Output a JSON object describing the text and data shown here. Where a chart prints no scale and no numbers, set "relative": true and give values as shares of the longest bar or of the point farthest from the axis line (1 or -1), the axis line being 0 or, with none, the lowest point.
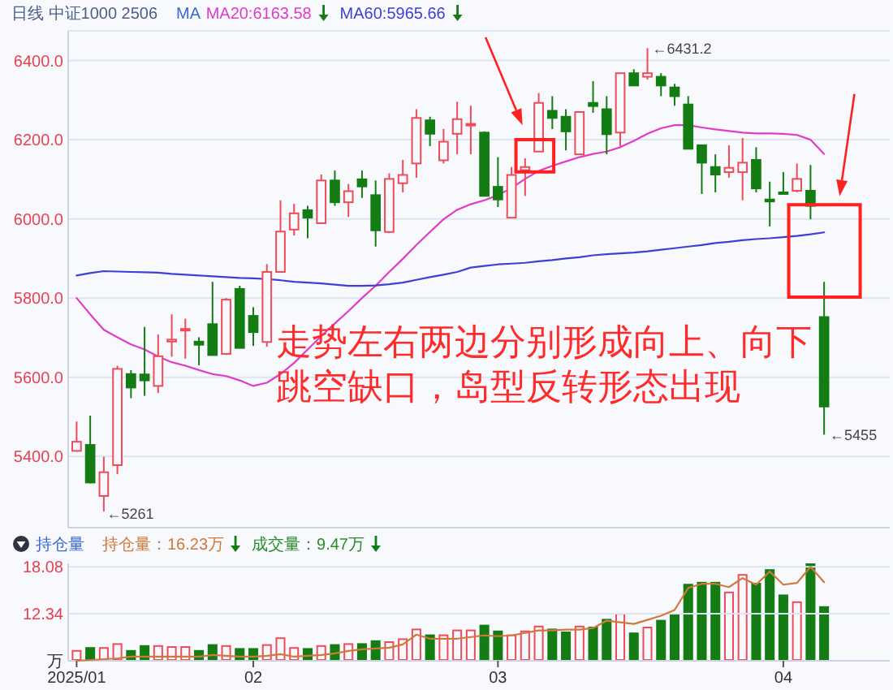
{
  "chart_data": [
    {
      "type": "candlestick",
      "title": "日线 中证1000 2506",
      "legend_title": "MA",
      "legend": "top",
      "grid": "y",
      "tick_labels": "y",
      "categories": [
        "2025/01",
        null,
        null,
        null,
        null,
        null,
        null,
        null,
        null,
        null,
        null,
        null,
        null,
        "02",
        null,
        null,
        null,
        null,
        null,
        null,
        null,
        null,
        null,
        null,
        null,
        null,
        null,
        null,
        null,
        null,
        null,
        "03",
        null,
        null,
        null,
        null,
        null,
        null,
        null,
        null,
        null,
        null,
        null,
        null,
        null,
        null,
        null,
        null,
        null,
        null,
        null,
        null,
        "04",
        null,
        null,
        null
      ],
      "ohlc": [
        [
          5414,
          5488,
          5412,
          5437
        ],
        [
          5429,
          5503,
          5332,
          5334
        ],
        [
          5300,
          5399,
          5261,
          5360
        ],
        [
          5378,
          5629,
          5355,
          5621
        ],
        [
          5608,
          5618,
          5547,
          5574
        ],
        [
          5607,
          5727,
          5553,
          5592
        ],
        [
          5578,
          5708,
          5560,
          5653
        ],
        [
          5690,
          5759,
          5652,
          5695
        ],
        [
          5718,
          5748,
          5647,
          5722
        ],
        [
          5690,
          5701,
          5630,
          5682
        ],
        [
          5734,
          5841,
          5656,
          5656
        ],
        [
          5659,
          5800,
          5656,
          5796
        ],
        [
          5823,
          5831,
          5674,
          5674
        ],
        [
          5755,
          5777,
          5679,
          5714
        ],
        [
          5689,
          5886,
          5677,
          5866
        ],
        [
          5866,
          6047,
          5866,
          5968
        ],
        [
          5973,
          6038,
          5958,
          6014
        ],
        [
          6022,
          6033,
          5951,
          6003
        ],
        [
          5989,
          6112,
          5989,
          6097
        ],
        [
          6097,
          6122,
          6033,
          6042
        ],
        [
          6042,
          6088,
          6005,
          6070
        ],
        [
          6100,
          6122,
          6053,
          6082
        ],
        [
          6060,
          6097,
          5930,
          5971
        ],
        [
          5967,
          6115,
          5964,
          6101
        ],
        [
          6090,
          6149,
          6067,
          6111
        ],
        [
          6140,
          6277,
          6104,
          6255
        ],
        [
          6249,
          6258,
          6184,
          6215
        ],
        [
          6148,
          6227,
          6140,
          6195
        ],
        [
          6215,
          6296,
          6163,
          6252
        ],
        [
          6236,
          6286,
          6163,
          6240
        ],
        [
          6218,
          6221,
          6058,
          6058
        ],
        [
          6081,
          6156,
          6030,
          6049
        ],
        [
          6003,
          6131,
          6003,
          6111
        ],
        [
          6123,
          6153,
          6058,
          6131
        ],
        [
          6170,
          6318,
          6170,
          6293
        ],
        [
          6273,
          6310,
          6227,
          6255
        ],
        [
          6258,
          6277,
          6173,
          6221
        ],
        [
          6163,
          6270,
          6163,
          6270
        ],
        [
          6293,
          6348,
          6268,
          6285
        ],
        [
          6277,
          6310,
          6163,
          6214
        ],
        [
          6218,
          6368,
          6184,
          6368
        ],
        [
          6368,
          6378,
          6337,
          6337
        ],
        [
          6359,
          6431.2,
          6352,
          6368
        ],
        [
          6359,
          6368,
          6310,
          6337
        ],
        [
          6332,
          6341,
          6286,
          6310
        ],
        [
          6289,
          6310,
          6177,
          6177
        ],
        [
          6186,
          6186,
          6063,
          6142
        ],
        [
          6131,
          6163,
          6067,
          6112
        ],
        [
          6118,
          6186,
          6104,
          6129
        ],
        [
          6118,
          6204,
          6047,
          6142
        ],
        [
          6149,
          6181,
          6067,
          6077
        ],
        [
          6049,
          6094,
          5981,
          6044
        ],
        [
          6067,
          6118,
          6061,
          6063
        ],
        [
          6071,
          6140,
          6067,
          6101
        ],
        [
          6071,
          6136,
          5999,
          6033
        ],
        [
          5752,
          5841,
          5455,
          5526
        ]
      ],
      "colors": [
        "#ef4b58",
        "#137d13",
        "#ef4b58",
        "#ef4b58",
        "#137d13",
        "#137d13",
        "#ef4b58",
        "#ef4b58",
        "#ef4b58",
        "#137d13",
        "#137d13",
        "#ef4b58",
        "#137d13",
        "#137d13",
        "#ef4b58",
        "#ef4b58",
        "#ef4b58",
        "#137d13",
        "#ef4b58",
        "#137d13",
        "#ef4b58",
        "#137d13",
        "#137d13",
        "#ef4b58",
        "#ef4b58",
        "#ef4b58",
        "#137d13",
        "#ef4b58",
        "#ef4b58",
        "#ef4b58",
        "#137d13",
        "#137d13",
        "#ef4b58",
        "#ef4b58",
        "#ef4b58",
        "#137d13",
        "#137d13",
        "#ef4b58",
        "#137d13",
        "#137d13",
        "#ef4b58",
        "#137d13",
        "#ef4b58",
        "#137d13",
        "#137d13",
        "#137d13",
        "#137d13",
        "#137d13",
        "#ef4b58",
        "#ef4b58",
        "#137d13",
        "#137d13",
        "#137d13",
        "#ef4b58",
        "#137d13",
        "#137d13"
      ],
      "series": [
        {
          "type": "line",
          "name": "MA20:6163.58",
          "color": "#e03cc8",
          "values": [
            5800,
            5759,
            5720,
            5701,
            5683,
            5670,
            5652,
            5638,
            5629,
            5618,
            5608,
            5603,
            5592,
            5578,
            5586,
            5608,
            5636,
            5670,
            5704,
            5736,
            5767,
            5800,
            5831,
            5866,
            5899,
            5934,
            5967,
            5999,
            6023,
            6037,
            6047,
            6060,
            6078,
            6101,
            6121,
            6134,
            6145,
            6156,
            6164,
            6170,
            6181,
            6197,
            6215,
            6229,
            6237,
            6237,
            6231,
            6226,
            6222,
            6218,
            6216,
            6216,
            6215,
            6212,
            6200,
            6164
          ]
        },
        {
          "type": "line",
          "name": "MA60:5965.66",
          "color": "#3f3fd8",
          "values": [
            5857,
            5863,
            5868,
            5867,
            5866,
            5865,
            5864,
            5861,
            5859,
            5857,
            5855,
            5853,
            5851,
            5850,
            5848,
            5845,
            5841,
            5839,
            5837,
            5834,
            5831,
            5831,
            5832,
            5835,
            5839,
            5846,
            5853,
            5859,
            5866,
            5877,
            5881,
            5885,
            5887,
            5889,
            5893,
            5896,
            5900,
            5903,
            5908,
            5911,
            5913,
            5915,
            5918,
            5922,
            5926,
            5930,
            5934,
            5939,
            5942,
            5946,
            5949,
            5951,
            5954,
            5957,
            5961,
            5966
          ]
        }
      ],
      "ylim": [
        5220,
        6475
      ],
      "yticks": [
        {
          "value": 5400,
          "label": "5400.0"
        },
        {
          "value": 5600,
          "label": "5600.0"
        },
        {
          "value": 5800,
          "label": "5800.0"
        },
        {
          "value": 6000,
          "label": "6000.0"
        },
        {
          "value": 6200,
          "label": "6200.0"
        },
        {
          "value": 6400,
          "label": "6400.0"
        }
      ],
      "annotations": [
        "走势左右两边分别形成向上、向下跳空缺口，岛型反转形态出现",
        "←6431.2",
        "←5261",
        "←5455"
      ]
    },
    {
      "type": "line",
      "title": "持仓量",
      "legend": "top",
      "grid": "y",
      "categories": [
        "2025/01",
        null,
        null,
        null,
        null,
        null,
        null,
        null,
        null,
        null,
        null,
        null,
        null,
        "02",
        null,
        null,
        null,
        null,
        null,
        null,
        null,
        null,
        null,
        null,
        null,
        null,
        null,
        null,
        null,
        null,
        null,
        "03",
        null,
        null,
        null,
        null,
        null,
        null,
        null,
        null,
        null,
        null,
        null,
        null,
        null,
        null,
        null,
        null,
        null,
        null,
        null,
        null,
        "04",
        null,
        null,
        null
      ],
      "series": [
        {
          "name": "持仓量：16.23万",
          "color": "#cf7a3c",
          "values": [
            6.6,
            6.7,
            6.8,
            6.9,
            7.1,
            7.1,
            7.1,
            7.1,
            7.1,
            7.1,
            7.3,
            7.2,
            7.1,
            7.1,
            7.2,
            7.4,
            7.1,
            7.2,
            7.3,
            7.5,
            7.8,
            8.0,
            8.1,
            8.2,
            8.6,
            9.8,
            9.3,
            9.3,
            9.3,
            9.5,
            9.7,
            9.6,
            9.7,
            10.0,
            10.3,
            10.3,
            10.4,
            10.4,
            10.6,
            11.5,
            11.3,
            11.1,
            11.6,
            12.1,
            12.8,
            15.5,
            16.0,
            16.0,
            15.6,
            16.7,
            15.9,
            17.5,
            15.9,
            16.1,
            18.08,
            16.2
          ]
        }
      ],
      "ylim": [
        6.6,
        18.5
      ],
      "yticks": [
        {
          "value": 6.6,
          "label": "万"
        },
        12.34,
        18.08
      ]
    },
    {
      "type": "bar",
      "relative": true,
      "legend": "top",
      "tick_labels": false,
      "categories": [
        "2025/01",
        null,
        null,
        null,
        null,
        null,
        null,
        null,
        null,
        null,
        null,
        null,
        null,
        "02",
        null,
        null,
        null,
        null,
        null,
        null,
        null,
        null,
        null,
        null,
        null,
        null,
        null,
        null,
        null,
        null,
        null,
        "03",
        null,
        null,
        null,
        null,
        null,
        null,
        null,
        null,
        null,
        null,
        null,
        null,
        null,
        null,
        null,
        null,
        null,
        null,
        null,
        null,
        "04",
        null,
        null,
        null
      ],
      "series": [
        {
          "name": "成交量：9.47万",
          "color": "#2b8c2b",
          "colors": [
            "#ef4b58",
            "#137d13",
            "#ef4b58",
            "#ef4b58",
            "#137d13",
            "#137d13",
            "#ef4b58",
            "#ef4b58",
            "#ef4b58",
            "#137d13",
            "#137d13",
            "#ef4b58",
            "#137d13",
            "#137d13",
            "#ef4b58",
            "#ef4b58",
            "#ef4b58",
            "#137d13",
            "#ef4b58",
            "#137d13",
            "#ef4b58",
            "#137d13",
            "#137d13",
            "#ef4b58",
            "#ef4b58",
            "#ef4b58",
            "#137d13",
            "#ef4b58",
            "#ef4b58",
            "#ef4b58",
            "#137d13",
            "#137d13",
            "#ef4b58",
            "#ef4b58",
            "#ef4b58",
            "#137d13",
            "#137d13",
            "#ef4b58",
            "#137d13",
            "#137d13",
            "#ef4b58",
            "#137d13",
            "#ef4b58",
            "#137d13",
            "#137d13",
            "#137d13",
            "#137d13",
            "#137d13",
            "#ef4b58",
            "#ef4b58",
            "#137d13",
            "#137d13",
            "#137d13",
            "#ef4b58",
            "#137d13",
            "#137d13"
          ],
          "values": [
            0.11,
            0.14,
            0.14,
            0.18,
            0.11,
            0.16,
            0.16,
            0.15,
            0.15,
            0.11,
            0.17,
            0.16,
            0.13,
            0.13,
            0.17,
            0.24,
            0.14,
            0.13,
            0.16,
            0.17,
            0.18,
            0.18,
            0.21,
            0.2,
            0.23,
            0.33,
            0.27,
            0.27,
            0.32,
            0.32,
            0.37,
            0.31,
            0.27,
            0.31,
            0.36,
            0.33,
            0.3,
            0.36,
            0.35,
            0.43,
            0.49,
            0.29,
            0.35,
            0.42,
            0.49,
            0.79,
            0.81,
            0.81,
            0.71,
            0.89,
            0.8,
            0.94,
            0.68,
            0.61,
            1,
            0.56
          ]
        }
      ]
    }
  ]
}
